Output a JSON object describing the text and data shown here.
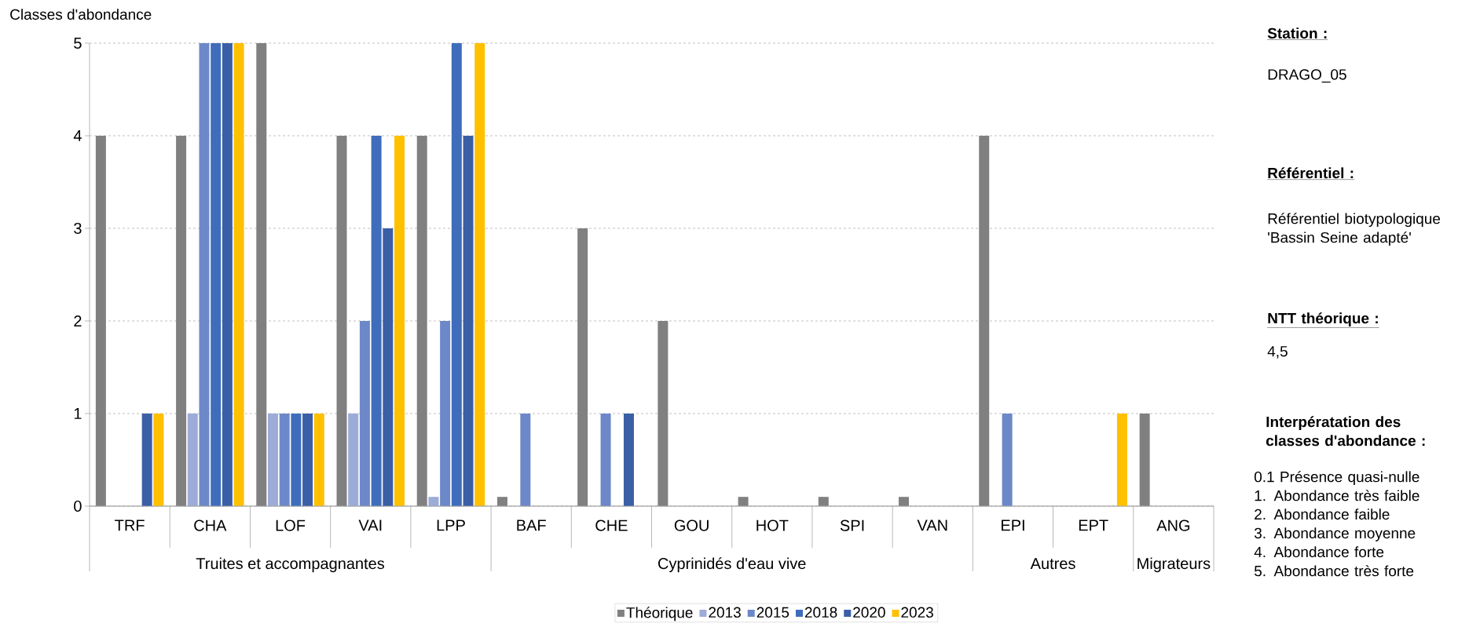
{
  "chart_data": {
    "type": "bar",
    "ylabel": "Classes d'abondance",
    "categories": [
      "TRF",
      "CHA",
      "LOF",
      "VAI",
      "LPP",
      "BAF",
      "CHE",
      "GOU",
      "HOT",
      "SPI",
      "VAN",
      "EPI",
      "EPT",
      "ANG"
    ],
    "series": [
      {
        "name": "Théorique",
        "color": "#808080",
        "values": [
          4,
          4,
          5,
          4,
          4,
          0.1,
          3,
          2,
          0.1,
          0.1,
          0.1,
          4,
          null,
          1
        ]
      },
      {
        "name": "2013",
        "color": "#9dabd7",
        "values": [
          null,
          1,
          1,
          1,
          0.1,
          null,
          null,
          null,
          null,
          null,
          null,
          null,
          null,
          null
        ]
      },
      {
        "name": "2015",
        "color": "#6d88c8",
        "values": [
          null,
          5,
          1,
          2,
          2,
          1,
          1,
          null,
          null,
          null,
          null,
          1,
          null,
          null
        ]
      },
      {
        "name": "2018",
        "color": "#3f6dbb",
        "values": [
          null,
          5,
          1,
          4,
          5,
          null,
          null,
          null,
          null,
          null,
          null,
          null,
          null,
          null
        ]
      },
      {
        "name": "2020",
        "color": "#3a5fa6",
        "values": [
          1,
          5,
          1,
          3,
          4,
          null,
          1,
          null,
          null,
          null,
          null,
          null,
          null,
          null
        ]
      },
      {
        "name": "2023",
        "color": "#ffc000",
        "values": [
          1,
          5,
          1,
          4,
          5,
          null,
          null,
          null,
          null,
          null,
          null,
          null,
          1,
          null
        ]
      }
    ],
    "ylim": [
      0,
      5
    ],
    "yticks": [
      0,
      1,
      2,
      3,
      4,
      5
    ],
    "grid": "y",
    "legend": "bottom",
    "annotations": [
      "Truites et accompagnantes",
      "Cyprinidés d'eau vive",
      "Autres",
      "Migrateurs",
      "Station :",
      "DRAGO_05",
      "Référentiel :",
      "Référentiel biotypologique 'Bassin Seine adapté'",
      "NTT théorique :",
      "4,5",
      "Interpératation des classes d'abondance :",
      "0.1   Présence quasi-nulle",
      "1.      Abondance très faible",
      "2.      Abondance faible",
      "3.      Abondance moyenne",
      "4.      Abondance forte",
      "5.      Abondance très forte"
    ]
  }
}
